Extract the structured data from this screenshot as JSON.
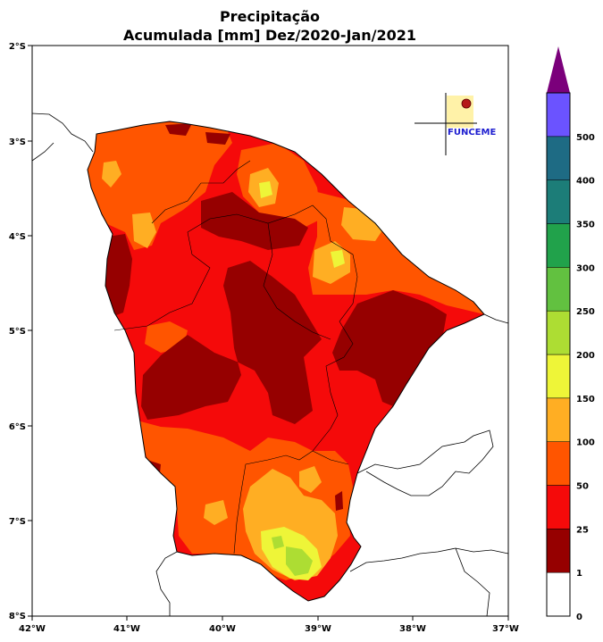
{
  "title": {
    "line1": "Precipitação",
    "line2": "Acumulada [mm] Dez/2020-Jan/2021"
  },
  "axes": {
    "lon_labels": [
      "42°W",
      "41°W",
      "40°W",
      "39°W",
      "38°W",
      "37°W"
    ],
    "lat_labels": [
      "2°S",
      "3°S",
      "4°S",
      "5°S",
      "6°S",
      "7°S",
      "8°S"
    ]
  },
  "logo": {
    "text": "FUNCEME"
  },
  "colorbar": {
    "labels": [
      "0",
      "1",
      "25",
      "50",
      "100",
      "150",
      "200",
      "250",
      "300",
      "350",
      "400",
      "500"
    ],
    "colors": [
      "#ffffff",
      "#960000",
      "#f50a0a",
      "#ff5500",
      "#ffae23",
      "#eef538",
      "#addd33",
      "#62c140",
      "#21a24b",
      "#1c7d78",
      "#1e6b84",
      "#6b53ff"
    ],
    "extend_color": "#7b007b"
  },
  "colors": {
    "level_1_25": "#960000",
    "level_25_50": "#f50a0a",
    "level_50_100": "#ff5500",
    "level_100_150": "#ffae23",
    "level_150_200": "#eef538",
    "level_200_250": "#addd33"
  }
}
